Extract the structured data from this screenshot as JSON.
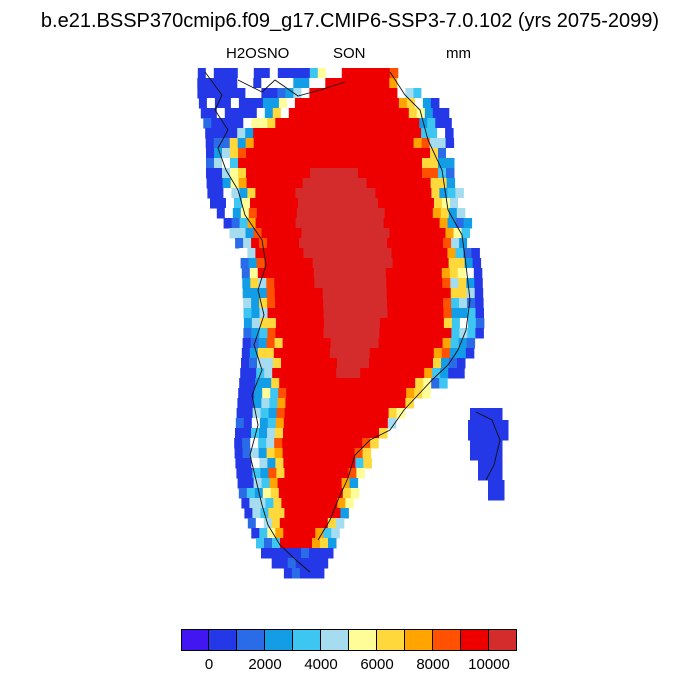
{
  "title": "b.e21.BSSP370cmip6.f09_g17.CMIP6-SSP3-7.0.102 (yrs 2075-2099)",
  "variable": "H2OSNO",
  "season": "SON",
  "units": "mm",
  "colorbar": {
    "colors": [
      "#4216f0",
      "#2438e8",
      "#2a6ce8",
      "#139de7",
      "#3ec6f2",
      "#a6dcef",
      "#fffd98",
      "#ffd93b",
      "#ffa400",
      "#ff5100",
      "#ee0000",
      "#d42c2c"
    ],
    "tick_labels": [
      "0",
      "2000",
      "4000",
      "6000",
      "8000",
      "10000"
    ]
  }
}
